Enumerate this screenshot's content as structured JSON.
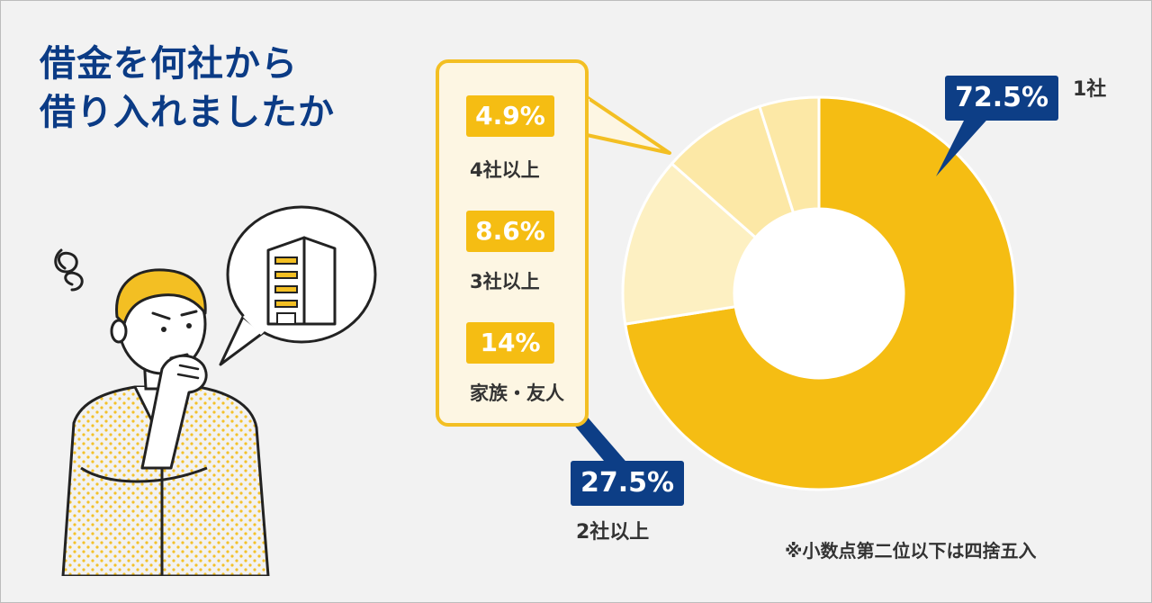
{
  "header": {
    "title_line1": "借金を何社から",
    "title_line2": "借り入れましたか"
  },
  "chart_data": {
    "type": "pie",
    "variant": "donut",
    "slices": [
      {
        "label": "1社",
        "value": 72.5,
        "display": "72.5%",
        "color": "#f5bd13"
      },
      {
        "label": "家族・友人",
        "value": 14,
        "display": "14%",
        "color": "#fdf0c2"
      },
      {
        "label": "3社以上",
        "value": 8.6,
        "display": "8.6%",
        "color": "#fce8a6"
      },
      {
        "label": "4社以上",
        "value": 4.9,
        "display": "4.9%",
        "color": "#fce8a6"
      }
    ],
    "group": {
      "label": "2社以上",
      "value": 27.5,
      "display": "27.5%"
    },
    "note": "※小数点第二位以下は四捨五入"
  },
  "colors": {
    "accent": "#f5bd13",
    "navy": "#0b3b85",
    "panel_bg": "#fdf6e3"
  },
  "icons": [
    "building-icon",
    "confused-swirl-icon"
  ]
}
